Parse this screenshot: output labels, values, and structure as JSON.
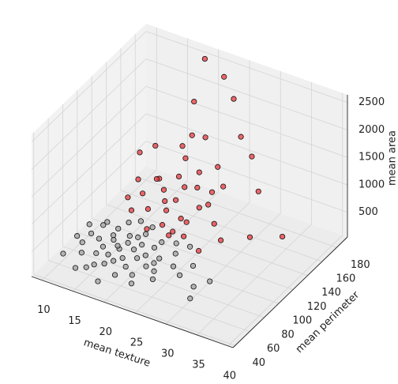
{
  "chart_data": {
    "type": "scatter3d",
    "xlabel": "mean texture",
    "ylabel": "mean perimeter",
    "zlabel": "mean area",
    "xlim": [
      8.3,
      40.8
    ],
    "ylim": [
      37,
      195
    ],
    "zlim": [
      50,
      2640
    ],
    "xticks": [
      10,
      15,
      20,
      25,
      30,
      35,
      40
    ],
    "yticks": [
      40,
      60,
      80,
      100,
      120,
      140,
      160,
      180
    ],
    "zticks": [
      500,
      1000,
      1500,
      2000,
      2500
    ],
    "grid": true,
    "series": [
      {
        "color": "#a0a0a0",
        "x": [
          14.4,
          18.6,
          21.0,
          16.8,
          19.5,
          13.1,
          17.9,
          22.5,
          15.7,
          24.0,
          12.4,
          20.3,
          18.0,
          16.0,
          26.5,
          14.9,
          19.0,
          23.1,
          11.2,
          17.2,
          21.6,
          25.8,
          13.9,
          19.9,
          28.0,
          15.1,
          22.8,
          10.7,
          17.6,
          20.8,
          16.4,
          24.7,
          18.3,
          12.9,
          27.2,
          14.2,
          21.9,
          30.7,
          19.3,
          23.6,
          15.5,
          17.0,
          29.1,
          20.1,
          13.5,
          32.5,
          18.8,
          22.2,
          16.2,
          25.1,
          11.9,
          20.6,
          31.2,
          24.2,
          17.4
        ],
        "y": [
          78,
          82,
          74,
          70,
          88,
          65,
          76,
          85,
          60,
          79,
          72,
          92,
          67,
          84,
          77,
          56,
          71,
          90,
          75,
          95,
          62,
          86,
          88,
          79,
          73,
          68,
          71,
          60,
          49,
          97,
          81,
          64,
          87,
          80,
          94,
          91,
          78,
          69,
          58,
          75,
          74,
          63,
          82,
          66,
          53,
          76,
          98,
          56,
          89,
          93,
          86,
          84,
          60,
          70,
          78
        ],
        "z": [
          460,
          500,
          420,
          370,
          560,
          320,
          440,
          530,
          270,
          470,
          390,
          600,
          340,
          510,
          450,
          240,
          380,
          590,
          420,
          650,
          290,
          540,
          560,
          470,
          400,
          350,
          380,
          270,
          180,
          680,
          480,
          310,
          550,
          470,
          620,
          590,
          455,
          350,
          250,
          420,
          410,
          300,
          500,
          330,
          210,
          430,
          700,
          235,
          575,
          610,
          520,
          520,
          270,
          360,
          450
        ]
      },
      {
        "color": "#e8383d",
        "x": [
          17.8,
          21.2,
          19.7,
          20.4,
          14.3,
          23.3,
          25.0,
          22.1,
          18.6,
          27.1,
          16.0,
          21.8,
          24.4,
          29.0,
          19.2,
          26.3,
          15.3,
          22.9,
          31.0,
          20.0,
          18.2,
          24.9,
          28.0,
          17.1,
          23.7,
          33.1,
          21.5,
          26.0,
          19.9,
          22.7,
          30.4,
          25.6,
          16.7,
          27.7,
          20.8,
          23.9,
          18.9,
          39.3,
          28.6,
          21.1,
          24.1,
          26.9,
          15.8,
          22.4,
          35.0
        ],
        "y": [
          132,
          130,
          122,
          155,
          135,
          98,
          108,
          118,
          188,
          120,
          142,
          102,
          128,
          112,
          168,
          140,
          110,
          152,
          104,
          96,
          125,
          174,
          133,
          115,
          100,
          138,
          110,
          117,
          146,
          125,
          152,
          99,
          103,
          160,
          114,
          135,
          107,
          118,
          94,
          140,
          108,
          127,
          120,
          182,
          110
        ],
        "z": [
          1000,
          1200,
          1000,
          1600,
          1300,
          620,
          800,
          960,
          2500,
          1050,
          1400,
          700,
          1150,
          880,
          2000,
          1450,
          840,
          1700,
          760,
          630,
          1100,
          2200,
          1250,
          920,
          680,
          1300,
          850,
          990,
          1500,
          1130,
          1650,
          680,
          750,
          1800,
          940,
          1320,
          810,
          980,
          600,
          1400,
          830,
          1180,
          1060,
          2400,
          900
        ]
      }
    ]
  }
}
